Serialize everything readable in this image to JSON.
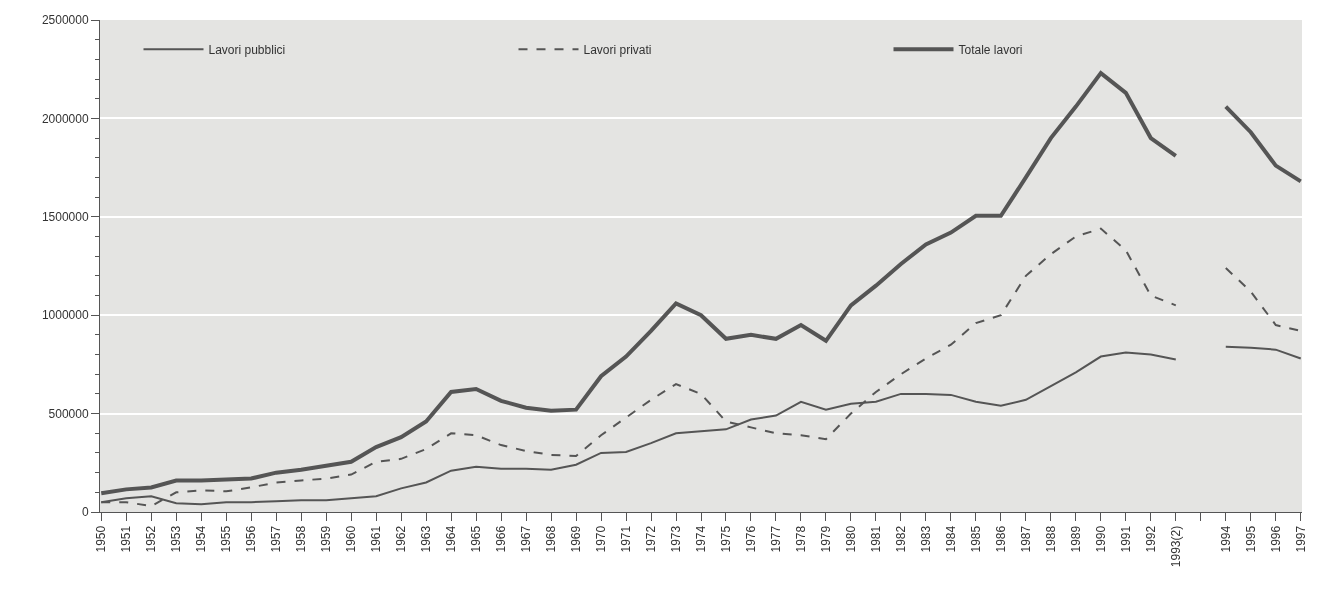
{
  "chart_data": {
    "type": "line",
    "categories": [
      "1950",
      "1951",
      "1952",
      "1953",
      "1954",
      "1955",
      "1956",
      "1957",
      "1958",
      "1959",
      "1960",
      "1961",
      "1962",
      "1963",
      "1964",
      "1965",
      "1966",
      "1967",
      "1968",
      "1969",
      "1970",
      "1971",
      "1972",
      "1973",
      "1974",
      "1975",
      "1976",
      "1977",
      "1978",
      "1979",
      "1980",
      "1981",
      "1982",
      "1983",
      "1984",
      "1985",
      "1986",
      "1987",
      "1988",
      "1989",
      "1990",
      "1991",
      "1992",
      "1993(2)",
      null,
      "1994",
      "1995",
      "1996",
      "1997"
    ],
    "series": [
      {
        "name": "Lavori pubblici",
        "color": "#555555",
        "line_style": "solid",
        "values": [
          50000,
          70000,
          80000,
          45000,
          40000,
          50000,
          50000,
          55000,
          60000,
          60000,
          70000,
          80000,
          120000,
          150000,
          210000,
          230000,
          220000,
          220000,
          215000,
          240000,
          300000,
          305000,
          350000,
          400000,
          410000,
          420000,
          470000,
          490000,
          560000,
          520000,
          550000,
          560000,
          600000,
          600000,
          595000,
          560000,
          540000,
          570000,
          640000,
          710000,
          790000,
          810000,
          800000,
          775000,
          null,
          840000,
          835000,
          825000,
          780000
        ]
      },
      {
        "name": "Lavori privati",
        "color": "#555555",
        "line_style": "dashed",
        "values": [
          50000,
          50000,
          30000,
          100000,
          110000,
          105000,
          125000,
          150000,
          160000,
          170000,
          190000,
          255000,
          270000,
          320000,
          400000,
          390000,
          340000,
          310000,
          290000,
          285000,
          390000,
          480000,
          570000,
          650000,
          600000,
          460000,
          430000,
          400000,
          390000,
          370000,
          500000,
          610000,
          700000,
          780000,
          850000,
          960000,
          1000000,
          1200000,
          1310000,
          1400000,
          1440000,
          1330000,
          1100000,
          1050000,
          null,
          1240000,
          1120000,
          950000,
          920000
        ]
      },
      {
        "name": "Totale lavori",
        "color": "#555555",
        "line_style": "solid",
        "values": [
          95000,
          115000,
          125000,
          160000,
          160000,
          165000,
          170000,
          200000,
          215000,
          235000,
          255000,
          330000,
          380000,
          460000,
          610000,
          625000,
          565000,
          530000,
          515000,
          520000,
          690000,
          790000,
          920000,
          1060000,
          1000000,
          880000,
          900000,
          880000,
          950000,
          870000,
          1050000,
          1150000,
          1260000,
          1360000,
          1420000,
          1505000,
          1505000,
          1700000,
          1900000,
          2060000,
          2230000,
          2130000,
          1900000,
          1810000,
          null,
          2060000,
          1930000,
          1760000,
          1680000
        ]
      }
    ],
    "ylim": [
      0,
      2500000
    ],
    "yticks": [
      0,
      {
        "value": 100000,
        "label": null
      },
      {
        "value": 200000,
        "label": null
      },
      {
        "value": 300000,
        "label": null
      },
      {
        "value": 400000,
        "label": null
      },
      500000,
      {
        "value": 600000,
        "label": null
      },
      {
        "value": 700000,
        "label": null
      },
      {
        "value": 800000,
        "label": null
      },
      {
        "value": 900000,
        "label": null
      },
      1000000,
      {
        "value": 1100000,
        "label": null
      },
      {
        "value": 1200000,
        "label": null
      },
      {
        "value": 1300000,
        "label": null
      },
      {
        "value": 1400000,
        "label": null
      },
      1500000,
      {
        "value": 1600000,
        "label": null
      },
      {
        "value": 1700000,
        "label": null
      },
      {
        "value": 1800000,
        "label": null
      },
      {
        "value": 1900000,
        "label": null
      },
      2000000,
      {
        "value": 2100000,
        "label": null
      },
      {
        "value": 2200000,
        "label": null
      },
      {
        "value": 2300000,
        "label": null
      },
      {
        "value": 2400000,
        "label": null
      },
      2500000
    ],
    "grid": "y",
    "legend": "top",
    "marker": "none"
  }
}
